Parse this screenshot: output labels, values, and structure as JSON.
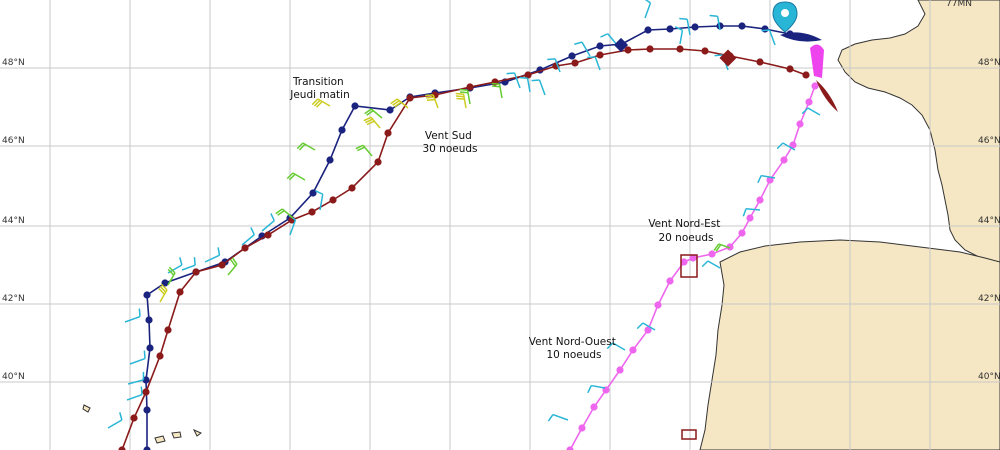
{
  "map": {
    "scale_label": "77MN",
    "latitude_labels": [
      "48°N",
      "46°N",
      "44°N",
      "42°N",
      "40°N"
    ],
    "annotations": [
      {
        "lines": [
          "Transition",
          "Jeudi matin"
        ]
      },
      {
        "lines": [
          "Vent Sud",
          "30 noeuds"
        ]
      },
      {
        "lines": [
          "Vent Nord-Est",
          "20 noeuds"
        ]
      },
      {
        "lines": [
          "Vent Nord-Ouest",
          "10 noeuds"
        ]
      }
    ],
    "colors": {
      "ocean": "#ffffff",
      "land": "#f5e6c4",
      "coast": "#333333",
      "grid": "#c8c8c8",
      "route_navy": "#1a237e",
      "route_maroon": "#8b1a1a",
      "route_magenta": "#ee66ee",
      "wind_cyan": "#29b6d6",
      "wind_green": "#66cc33",
      "wind_yellow": "#cccc22"
    }
  }
}
